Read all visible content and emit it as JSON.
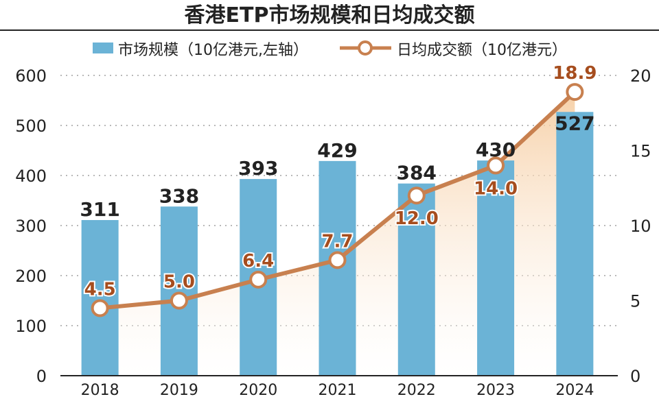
{
  "title": "香港ETP市场规模和日均成交额",
  "legend": {
    "bar_label": "市场规模（10亿港元,左轴）",
    "line_label": "日均成交额（10亿港元）"
  },
  "colors": {
    "bar": "#6bb3d6",
    "line": "#c8804f",
    "line_label": "#a64d1e",
    "area_top": "#f5c99a",
    "grid": "#b8b8b8",
    "text": "#222222"
  },
  "chart_data": {
    "type": "bar",
    "categories": [
      "2018",
      "2019",
      "2020",
      "2021",
      "2022",
      "2023",
      "2024"
    ],
    "series": [
      {
        "name": "市场规模（10亿港元,左轴）",
        "type": "bar",
        "axis": "left",
        "values": [
          311,
          338,
          393,
          429,
          384,
          430,
          527
        ],
        "value_labels": [
          "311",
          "338",
          "393",
          "429",
          "384",
          "430",
          "527"
        ]
      },
      {
        "name": "日均成交额（10亿港元）",
        "type": "line",
        "axis": "right",
        "values": [
          4.5,
          5.0,
          6.4,
          7.7,
          12.0,
          14.0,
          18.9
        ],
        "value_labels": [
          "4.5",
          "5.0",
          "6.4",
          "7.7",
          "12.0",
          "14.0",
          "18.9"
        ]
      }
    ],
    "y_left": {
      "range": [
        0,
        600
      ],
      "ticks": [
        "0",
        "100",
        "200",
        "300",
        "400",
        "500",
        "600"
      ]
    },
    "y_right": {
      "range": [
        0,
        20
      ],
      "ticks": [
        "0",
        "5",
        "10",
        "15",
        "20"
      ]
    },
    "grid": true,
    "legend_position": "top"
  }
}
